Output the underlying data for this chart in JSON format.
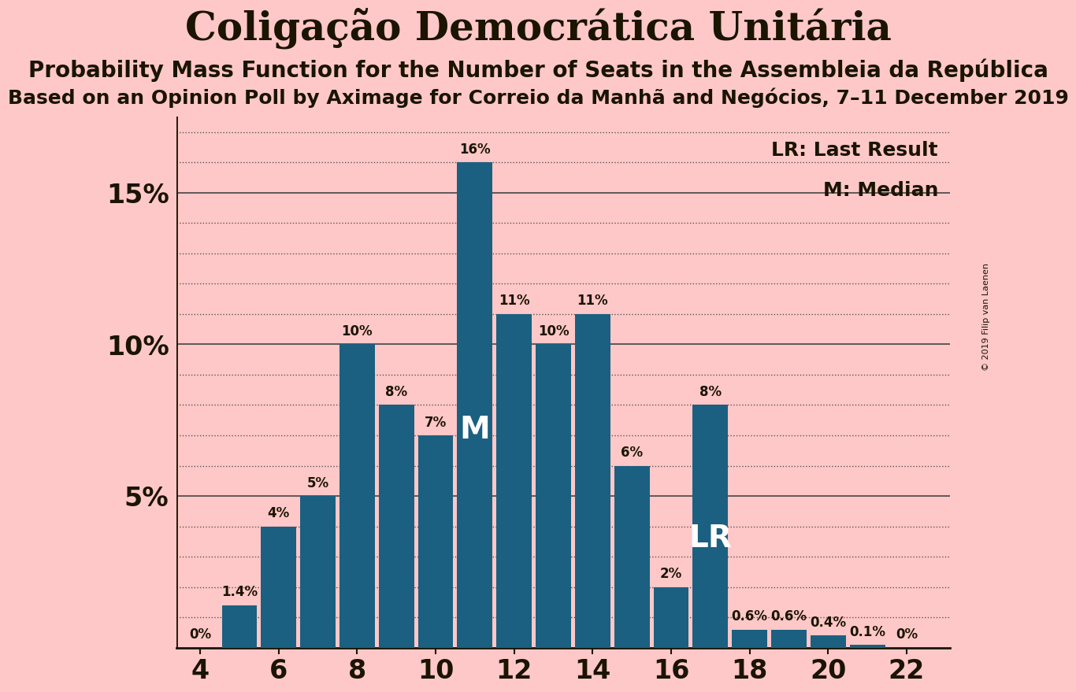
{
  "title": "Coligação Democrática Unitária",
  "subtitle1": "Probability Mass Function for the Number of Seats in the Assembleia da República",
  "subtitle2": "Based on an Opinion Poll by Aximage for Correio da Manhã and Negócios, 7–11 December 2019",
  "copyright": "© 2019 Filip van Laenen",
  "seats": [
    4,
    5,
    6,
    7,
    8,
    9,
    10,
    11,
    12,
    13,
    14,
    15,
    16,
    17,
    18,
    19,
    20,
    21,
    22
  ],
  "probabilities": [
    0.0,
    1.4,
    4.0,
    5.0,
    10.0,
    8.0,
    7.0,
    16.0,
    11.0,
    10.0,
    11.0,
    6.0,
    2.0,
    8.0,
    0.6,
    0.6,
    0.4,
    0.1,
    0.0
  ],
  "bar_labels": [
    "0%",
    "1.4%",
    "4%",
    "5%",
    "10%",
    "8%",
    "7%",
    "16%",
    "11%",
    "10%",
    "11%",
    "6%",
    "2%",
    "8%",
    "0.6%",
    "0.6%",
    "0.4%",
    "0.1%",
    "0%"
  ],
  "bar_color": "#1b6080",
  "background_color": "#ffc8c8",
  "text_color": "#1a1400",
  "median_seat": 11,
  "last_result_seat": 17,
  "ylim_max": 17.5,
  "yticks": [
    5,
    10,
    15
  ],
  "ytick_labels": [
    "5%",
    "10%",
    "15%"
  ],
  "minor_yticks": [
    1,
    2,
    3,
    4,
    6,
    7,
    8,
    9,
    11,
    12,
    13,
    14,
    16,
    17
  ],
  "xtick_labels": [
    4,
    6,
    8,
    10,
    12,
    14,
    16,
    18,
    20,
    22
  ],
  "bar_label_fontsize": 12,
  "title_fontsize": 36,
  "subtitle1_fontsize": 20,
  "subtitle2_fontsize": 18,
  "ytick_fontsize": 24,
  "xtick_fontsize": 24,
  "annotation_fontsize": 28,
  "legend_fontsize": 18
}
